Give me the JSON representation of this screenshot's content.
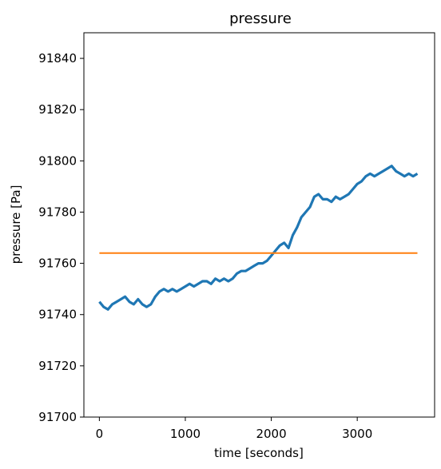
{
  "chart_data": {
    "type": "line",
    "title": "pressure",
    "xlabel": "time [seconds]",
    "ylabel": "pressure [Pa]",
    "xlim": [
      -180,
      3900
    ],
    "ylim": [
      91700,
      91850
    ],
    "xticks": [
      0,
      1000,
      2000,
      3000
    ],
    "yticks": [
      91700,
      91720,
      91740,
      91760,
      91780,
      91800,
      91820,
      91840
    ],
    "grid": false,
    "legend": "none",
    "series": [
      {
        "color": "#1f77b4",
        "x": [
          0,
          50,
          100,
          150,
          200,
          250,
          300,
          350,
          400,
          450,
          500,
          550,
          600,
          650,
          700,
          750,
          800,
          850,
          900,
          950,
          1000,
          1050,
          1100,
          1150,
          1200,
          1250,
          1300,
          1350,
          1400,
          1450,
          1500,
          1550,
          1600,
          1650,
          1700,
          1750,
          1800,
          1850,
          1900,
          1950,
          2000,
          2050,
          2100,
          2150,
          2200,
          2250,
          2300,
          2350,
          2400,
          2450,
          2500,
          2550,
          2600,
          2650,
          2700,
          2750,
          2800,
          2850,
          2900,
          2950,
          3000,
          3050,
          3100,
          3150,
          3200,
          3250,
          3300,
          3350,
          3400,
          3450,
          3500,
          3550,
          3600,
          3650,
          3700
        ],
        "y": [
          91745,
          91743,
          91742,
          91744,
          91745,
          91746,
          91747,
          91745,
          91744,
          91746,
          91744,
          91743,
          91744,
          91747,
          91749,
          91750,
          91749,
          91750,
          91749,
          91750,
          91751,
          91752,
          91751,
          91752,
          91753,
          91753,
          91752,
          91754,
          91753,
          91754,
          91753,
          91754,
          91756,
          91757,
          91757,
          91758,
          91759,
          91760,
          91760,
          91761,
          91763,
          91765,
          91767,
          91768,
          91766,
          91771,
          91774,
          91778,
          91780,
          91782,
          91786,
          91787,
          91785,
          91785,
          91784,
          91786,
          91785,
          91786,
          91787,
          91789,
          91791,
          91792,
          91794,
          91795,
          91794,
          91795,
          91796,
          91797,
          91798,
          91796,
          91795,
          91794,
          91795,
          91794,
          91795
        ]
      },
      {
        "color": "#ff7f0e",
        "x": [
          0,
          3700
        ],
        "y": [
          91764,
          91764
        ]
      }
    ]
  }
}
